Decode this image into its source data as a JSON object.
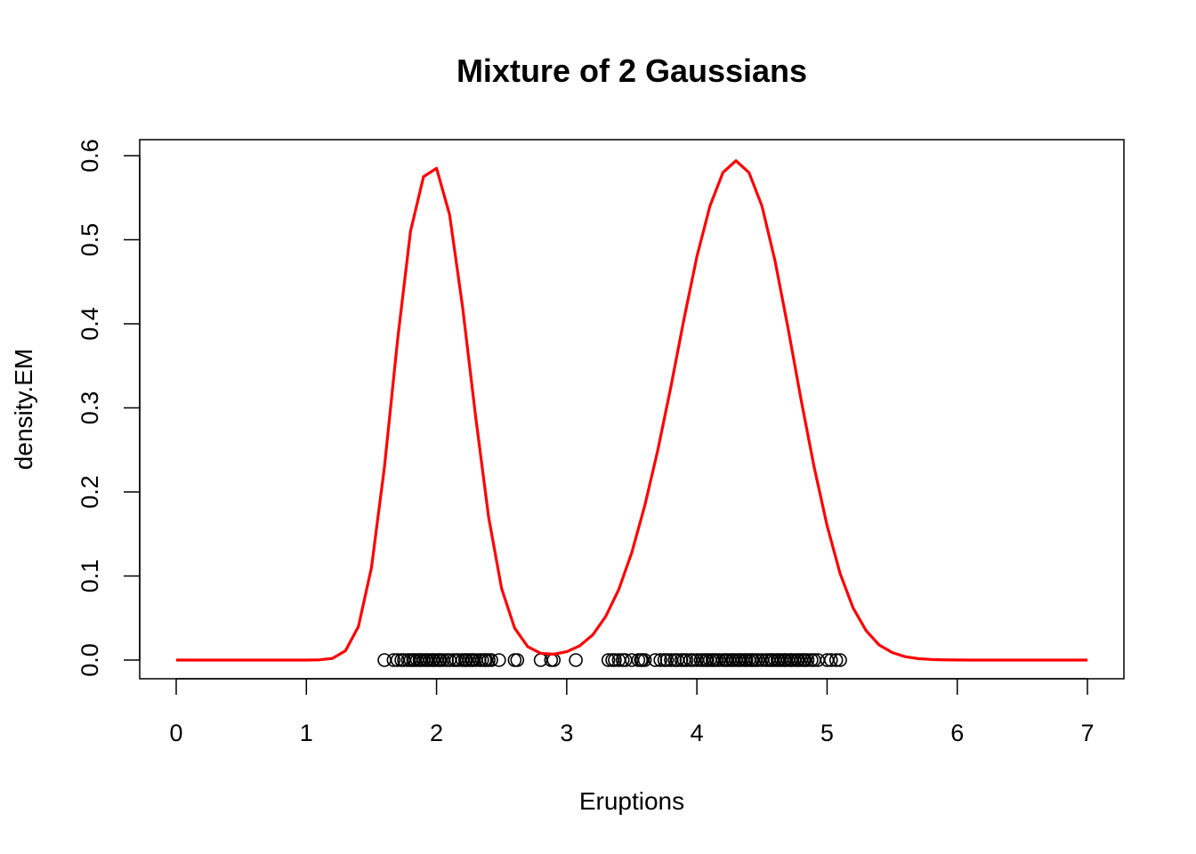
{
  "chart_data": {
    "type": "line",
    "title": "Mixture of 2 Gaussians",
    "xlabel": "Eruptions",
    "ylabel": "density.EM",
    "xlim": [
      0,
      7
    ],
    "ylim": [
      0,
      0.6
    ],
    "x_ticks": [
      "0",
      "1",
      "2",
      "3",
      "4",
      "5",
      "6",
      "7"
    ],
    "y_ticks": [
      "0.0",
      "0.1",
      "0.2",
      "0.3",
      "0.4",
      "0.5",
      "0.6"
    ],
    "grid": false,
    "legend": "none",
    "colors": {
      "curve": "#ff0000",
      "points": "#000000",
      "axes": "#000000"
    },
    "series": [
      {
        "kind": "line",
        "color": "#ff0000",
        "x": [
          0.0,
          0.1,
          0.2,
          0.3,
          0.4,
          0.5,
          0.6,
          0.7,
          0.8,
          0.9,
          1.0,
          1.1,
          1.2,
          1.3,
          1.4,
          1.5,
          1.6,
          1.7,
          1.8,
          1.9,
          2.0,
          2.1,
          2.2,
          2.3,
          2.4,
          2.5,
          2.6,
          2.7,
          2.8,
          2.9,
          3.0,
          3.1,
          3.2,
          3.3,
          3.4,
          3.5,
          3.6,
          3.7,
          3.8,
          3.9,
          4.0,
          4.1,
          4.2,
          4.3,
          4.4,
          4.5,
          4.6,
          4.7,
          4.8,
          4.9,
          5.0,
          5.1,
          5.2,
          5.3,
          5.4,
          5.5,
          5.6,
          5.7,
          5.8,
          5.9,
          6.0,
          6.1,
          6.2,
          6.3,
          6.4,
          6.5,
          6.6,
          6.7,
          6.8,
          6.9,
          7.0
        ],
        "y": [
          0.0,
          0.0,
          0.0,
          0.0,
          0.0,
          0.0,
          0.0,
          0.0,
          0.0,
          0.0,
          0.0,
          0.0003,
          0.002,
          0.011,
          0.04,
          0.11,
          0.23,
          0.38,
          0.51,
          0.575,
          0.585,
          0.53,
          0.42,
          0.29,
          0.17,
          0.085,
          0.038,
          0.016,
          0.008,
          0.007,
          0.01,
          0.017,
          0.03,
          0.052,
          0.084,
          0.128,
          0.184,
          0.25,
          0.325,
          0.405,
          0.48,
          0.54,
          0.58,
          0.594,
          0.58,
          0.54,
          0.475,
          0.395,
          0.31,
          0.23,
          0.16,
          0.103,
          0.062,
          0.035,
          0.018,
          0.009,
          0.004,
          0.0017,
          0.0007,
          0.0003,
          0.0001,
          0.0,
          0.0,
          0.0,
          0.0,
          0.0,
          0.0,
          0.0,
          0.0,
          0.0,
          0.0
        ]
      },
      {
        "kind": "points",
        "color": "#000000",
        "marker": "open-circle",
        "y_value": 0,
        "x": [
          1.6,
          1.67,
          1.7,
          1.73,
          1.75,
          1.78,
          1.8,
          1.82,
          1.83,
          1.85,
          1.87,
          1.88,
          1.9,
          1.92,
          1.93,
          1.95,
          1.97,
          1.98,
          2.0,
          2.02,
          2.03,
          2.05,
          2.08,
          2.1,
          2.13,
          2.15,
          2.17,
          2.2,
          2.22,
          2.23,
          2.25,
          2.27,
          2.28,
          2.3,
          2.33,
          2.35,
          2.37,
          2.38,
          2.4,
          2.42,
          2.48,
          2.6,
          2.62,
          2.8,
          2.88,
          2.9,
          3.07,
          3.32,
          3.35,
          3.37,
          3.4,
          3.43,
          3.45,
          3.5,
          3.55,
          3.57,
          3.58,
          3.6,
          3.68,
          3.72,
          3.75,
          3.77,
          3.8,
          3.83,
          3.85,
          3.88,
          3.9,
          3.92,
          3.95,
          3.97,
          4.0,
          4.03,
          4.05,
          4.07,
          4.08,
          4.1,
          4.12,
          4.13,
          4.15,
          4.17,
          4.2,
          4.22,
          4.23,
          4.25,
          4.27,
          4.28,
          4.3,
          4.32,
          4.33,
          4.35,
          4.37,
          4.38,
          4.4,
          4.42,
          4.43,
          4.45,
          4.47,
          4.5,
          4.53,
          4.55,
          4.57,
          4.58,
          4.6,
          4.62,
          4.63,
          4.65,
          4.67,
          4.68,
          4.7,
          4.72,
          4.73,
          4.75,
          4.77,
          4.78,
          4.8,
          4.82,
          4.83,
          4.85,
          4.88,
          4.9,
          4.93,
          5.0,
          5.03,
          5.07,
          5.1
        ]
      }
    ]
  }
}
